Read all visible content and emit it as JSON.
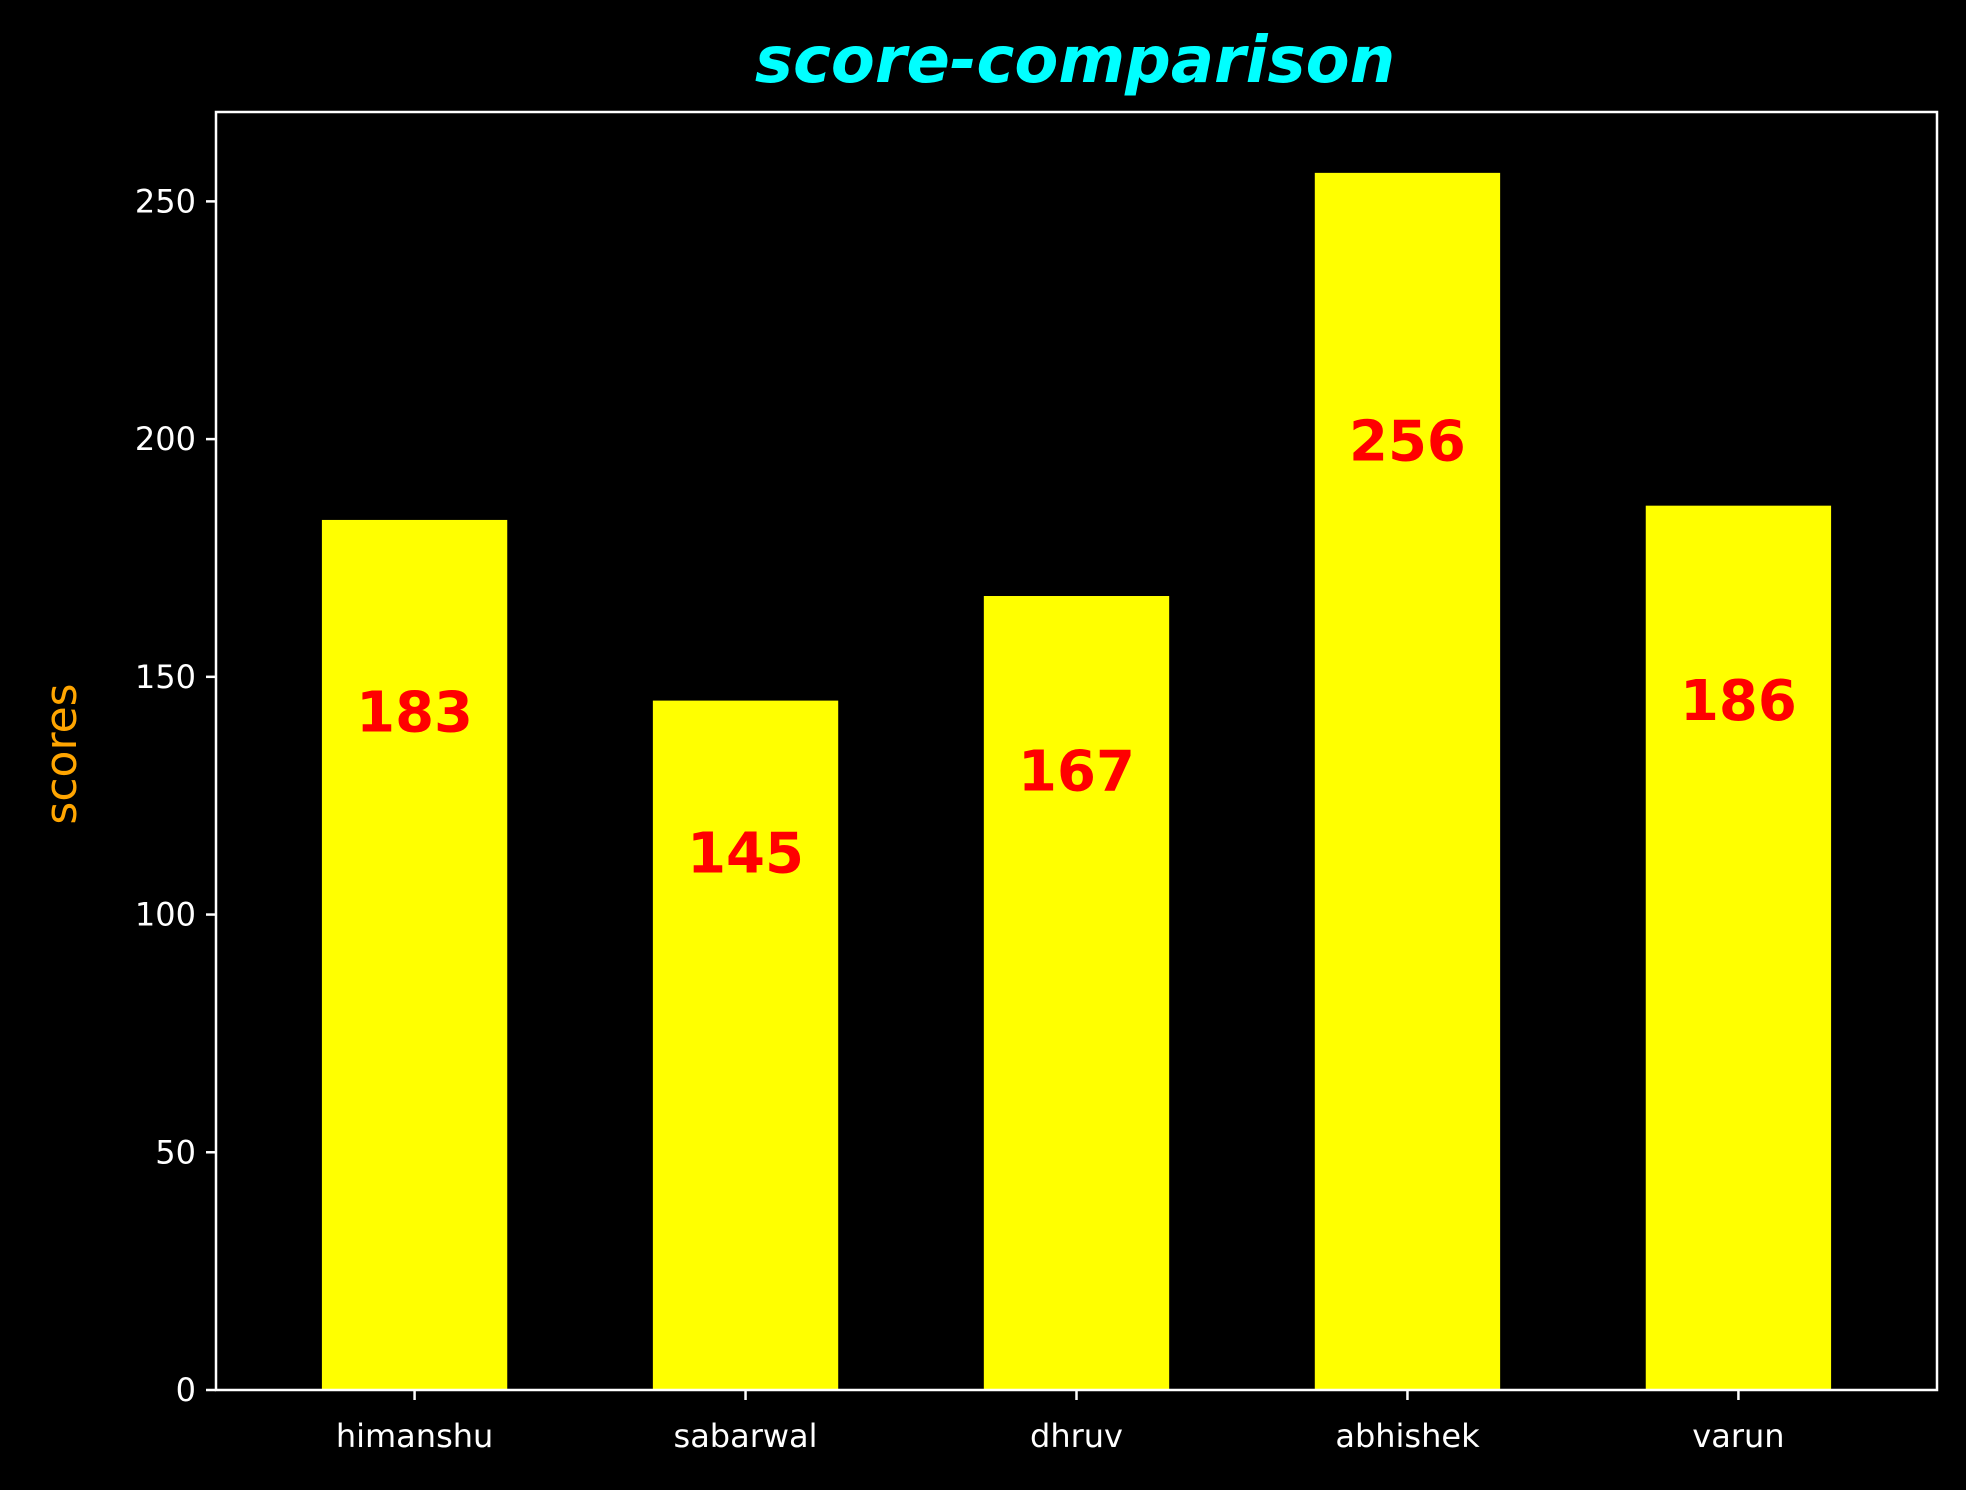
{
  "chart_data": {
    "type": "bar",
    "title": "score-comparison",
    "xlabel": "",
    "ylabel": "scores",
    "categories": [
      "himanshu",
      "sabarwal",
      "dhruv",
      "abhishek",
      "varun"
    ],
    "values": [
      183,
      145,
      167,
      256,
      186
    ],
    "data_labels": [
      "183",
      "145",
      "167",
      "256",
      "186"
    ],
    "ylim": [
      0,
      268.8
    ],
    "yticks": [
      0,
      50,
      100,
      150,
      200,
      250
    ],
    "ytick_labels": [
      "0",
      "50",
      "100",
      "150",
      "200",
      "250"
    ],
    "grid": false,
    "legend": "none",
    "colors": {
      "background": "#000000",
      "bar": "#ffff00",
      "bar_label": "#ff0000",
      "title": "#00ffff",
      "ylabel": "#ffa500",
      "axis": "#ffffff",
      "tick_text": "#ffffff"
    }
  }
}
